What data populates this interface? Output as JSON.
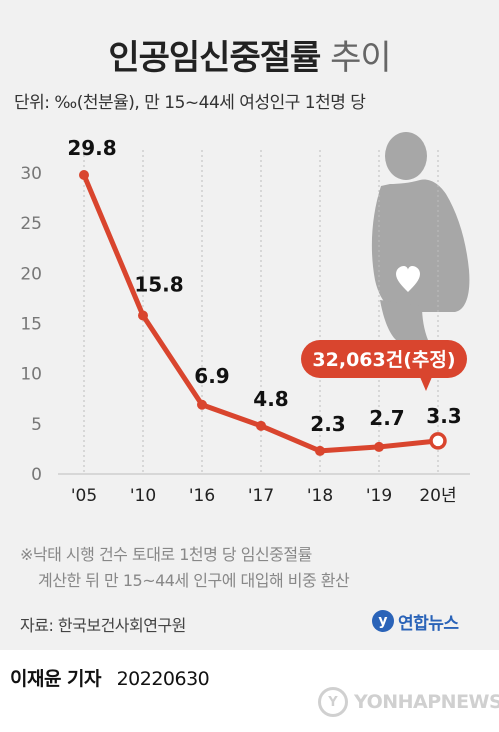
{
  "title": {
    "main": "인공임신중절률",
    "sub": "추이"
  },
  "unit_note": "단위: ‰(천분율), 만 15~44세 여성인구 1천명 당",
  "chart_data": {
    "type": "line",
    "categories": [
      "'05",
      "'10",
      "'16",
      "'17",
      "'18",
      "'19",
      "20년"
    ],
    "values": [
      29.8,
      15.8,
      6.9,
      4.8,
      2.3,
      2.7,
      3.3
    ],
    "value_labels": [
      "29.8",
      "15.8",
      "6.9",
      "4.8",
      "2.3",
      "2.7",
      "3.3"
    ],
    "yticks": [
      0,
      5,
      10,
      15,
      20,
      25,
      30
    ],
    "ylim": [
      0,
      30
    ],
    "line_color": "#d9452e",
    "grid": "vertical-dotted",
    "callout": "32,063건(추정)"
  },
  "footnote": {
    "line1": "※낙태 시행 건수 토대로 1천명 당 임신중절률",
    "line2": "계산한 뒤 만 15~44세 인구에 대입해 비중 환산"
  },
  "source": "자료: 한국보건사회연구원",
  "logo": {
    "mark": "y",
    "text": "연합뉴스"
  },
  "byline": {
    "name": "이재윤 기자",
    "date": "20220630"
  },
  "watermark": {
    "mark": "Y",
    "text": "YONHAPNEWS"
  }
}
